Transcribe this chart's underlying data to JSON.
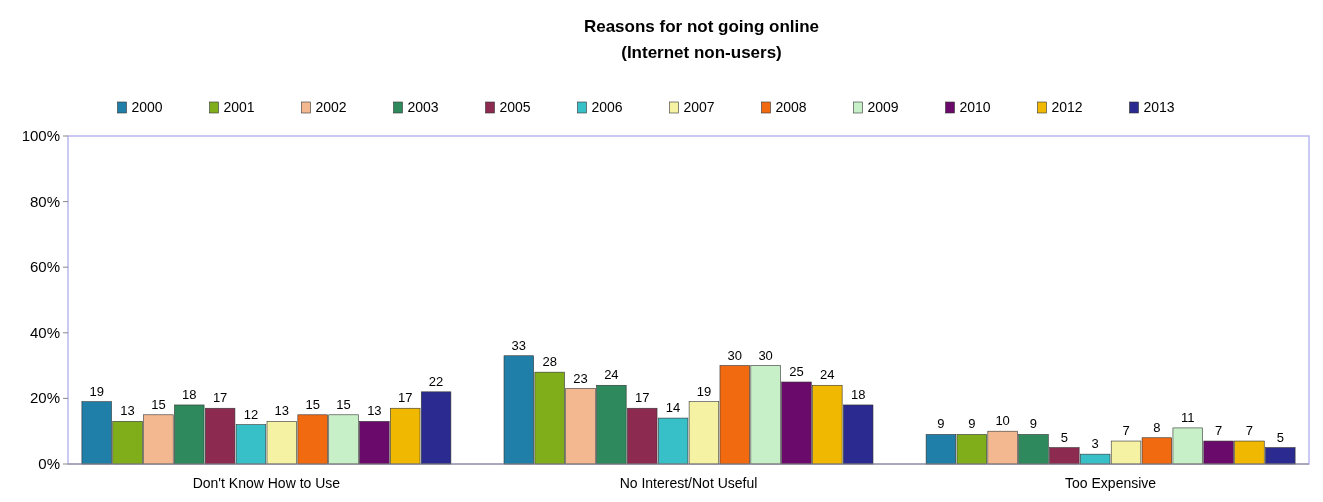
{
  "chart_data": {
    "type": "bar",
    "title": "Reasons for not going online",
    "subtitle": "(Internet non-users)",
    "categories": [
      "Don't Know How to Use",
      "No Interest/Not Useful",
      "Too Expensive"
    ],
    "series": [
      {
        "name": "2000",
        "color": "#1f7fa8",
        "values": [
          19,
          33,
          9
        ]
      },
      {
        "name": "2001",
        "color": "#7fae1a",
        "values": [
          13,
          28,
          9
        ]
      },
      {
        "name": "2002",
        "color": "#f4b890",
        "values": [
          15,
          23,
          10
        ]
      },
      {
        "name": "2003",
        "color": "#2e8a5c",
        "values": [
          18,
          24,
          9
        ]
      },
      {
        "name": "2005",
        "color": "#8c2a50",
        "values": [
          17,
          17,
          5
        ]
      },
      {
        "name": "2006",
        "color": "#38c0c8",
        "values": [
          12,
          14,
          3
        ]
      },
      {
        "name": "2007",
        "color": "#f6f2a4",
        "values": [
          13,
          19,
          7
        ]
      },
      {
        "name": "2008",
        "color": "#f26a10",
        "values": [
          15,
          30,
          8
        ]
      },
      {
        "name": "2009",
        "color": "#c8f0c8",
        "values": [
          15,
          30,
          11
        ]
      },
      {
        "name": "2010",
        "color": "#6a0a6a",
        "values": [
          13,
          25,
          7
        ]
      },
      {
        "name": "2012",
        "color": "#f0b800",
        "values": [
          17,
          24,
          7
        ]
      },
      {
        "name": "2013",
        "color": "#2a2a90",
        "values": [
          22,
          18,
          5
        ]
      }
    ],
    "ylim": [
      0,
      100
    ],
    "yticks": [
      {
        "value": 0,
        "label": "0%"
      },
      {
        "value": 20,
        "label": "20%"
      },
      {
        "value": 40,
        "label": "40%"
      },
      {
        "value": 60,
        "label": "60%"
      },
      {
        "value": 80,
        "label": "80%"
      },
      {
        "value": 100,
        "label": "100%"
      }
    ],
    "data_labels": true,
    "legend": "top"
  }
}
